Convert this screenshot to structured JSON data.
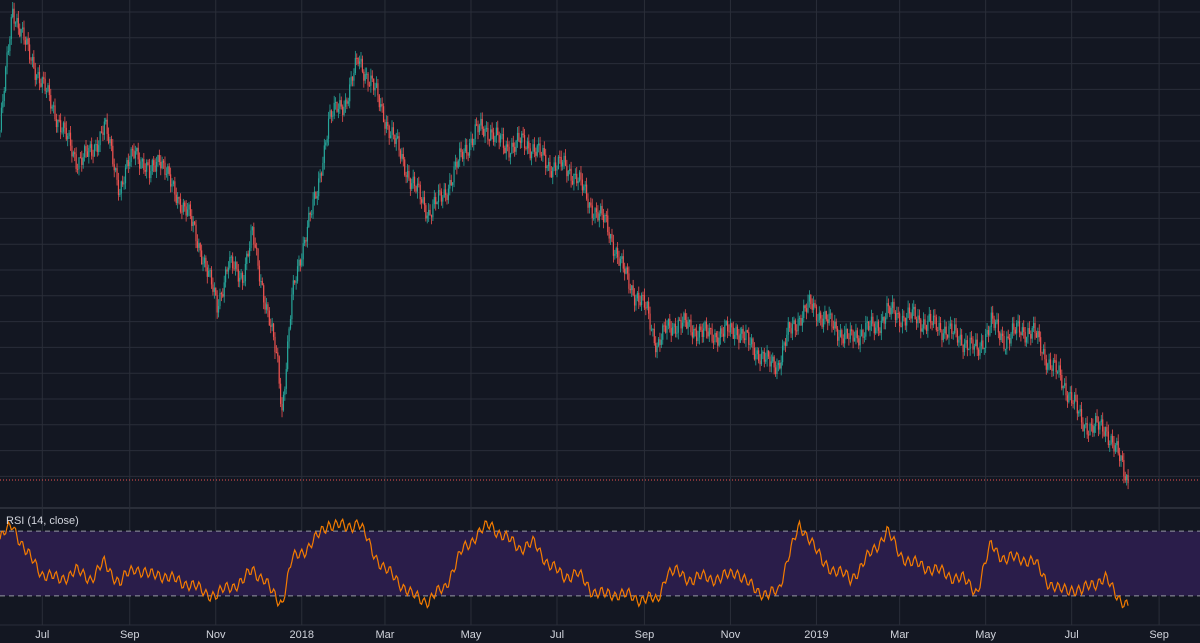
{
  "colors": {
    "background": "#131722",
    "grid": "#2a2e39",
    "up": "#26a69a",
    "down": "#ef5350",
    "rsi_line": "#f57c00",
    "rsi_band": "#2a1d4a",
    "rsi_bounds": "#9598a1",
    "text": "#d1d4dc",
    "last_price_line": "#ef5350"
  },
  "rsi": {
    "label": "RSI (14, close)",
    "upper": 70,
    "lower": 30
  },
  "chart_data": [
    {
      "type": "candlestick",
      "title": "",
      "grid": true,
      "x_ticks": [
        "Jul",
        "Sep",
        "Nov",
        "2018",
        "Mar",
        "May",
        "Jul",
        "Sep",
        "Nov",
        "2019",
        "Mar",
        "May",
        "Jul",
        "Sep"
      ],
      "x_range": [
        "2017-06-01",
        "2019-09-30"
      ],
      "price_path": [
        [
          "2017-06-01",
          78
        ],
        [
          "2017-06-10",
          99
        ],
        [
          "2017-06-20",
          92
        ],
        [
          "2017-07-01",
          86
        ],
        [
          "2017-07-12",
          80
        ],
        [
          "2017-07-25",
          73
        ],
        [
          "2017-08-05",
          74
        ],
        [
          "2017-08-14",
          79
        ],
        [
          "2017-08-25",
          68
        ],
        [
          "2017-09-05",
          75
        ],
        [
          "2017-09-15",
          70
        ],
        [
          "2017-09-22",
          74
        ],
        [
          "2017-10-01",
          68
        ],
        [
          "2017-10-12",
          64
        ],
        [
          "2017-10-22",
          57
        ],
        [
          "2017-11-02",
          48
        ],
        [
          "2017-11-10",
          55
        ],
        [
          "2017-11-20",
          53
        ],
        [
          "2017-11-27",
          60
        ],
        [
          "2017-12-05",
          50
        ],
        [
          "2017-12-10",
          44
        ],
        [
          "2017-12-15",
          38
        ],
        [
          "2017-12-18",
          30
        ],
        [
          "2017-12-25",
          49
        ],
        [
          "2018-01-05",
          62
        ],
        [
          "2018-01-12",
          67
        ],
        [
          "2018-01-20",
          80
        ],
        [
          "2018-02-01",
          83
        ],
        [
          "2018-02-10",
          90
        ],
        [
          "2018-02-20",
          86
        ],
        [
          "2018-03-01",
          80
        ],
        [
          "2018-03-10",
          75
        ],
        [
          "2018-03-20",
          69
        ],
        [
          "2018-04-01",
          64
        ],
        [
          "2018-04-12",
          67
        ],
        [
          "2018-04-25",
          74
        ],
        [
          "2018-05-05",
          78
        ],
        [
          "2018-05-15",
          78
        ],
        [
          "2018-05-25",
          75
        ],
        [
          "2018-06-05",
          76
        ],
        [
          "2018-06-15",
          75
        ],
        [
          "2018-06-25",
          72
        ],
        [
          "2018-07-05",
          72
        ],
        [
          "2018-07-15",
          70
        ],
        [
          "2018-07-25",
          65
        ],
        [
          "2018-08-05",
          62
        ],
        [
          "2018-08-15",
          55
        ],
        [
          "2018-08-25",
          50
        ],
        [
          "2018-09-03",
          47
        ],
        [
          "2018-09-10",
          41
        ],
        [
          "2018-09-17",
          44
        ],
        [
          "2018-09-25",
          45
        ],
        [
          "2018-10-05",
          44
        ],
        [
          "2018-10-15",
          43
        ],
        [
          "2018-10-25",
          43
        ],
        [
          "2018-11-05",
          44
        ],
        [
          "2018-11-12",
          42
        ],
        [
          "2018-11-20",
          40
        ],
        [
          "2018-11-28",
          38
        ],
        [
          "2018-12-05",
          38
        ],
        [
          "2018-12-12",
          43
        ],
        [
          "2018-12-20",
          46
        ],
        [
          "2018-12-28",
          48
        ],
        [
          "2019-01-05",
          46
        ],
        [
          "2019-01-15",
          44
        ],
        [
          "2019-01-25",
          42
        ],
        [
          "2019-02-05",
          44
        ],
        [
          "2019-02-12",
          44
        ],
        [
          "2019-02-20",
          47
        ],
        [
          "2019-03-01",
          46
        ],
        [
          "2019-03-10",
          46
        ],
        [
          "2019-03-20",
          45
        ],
        [
          "2019-04-01",
          44
        ],
        [
          "2019-04-15",
          42
        ],
        [
          "2019-04-25",
          40
        ],
        [
          "2019-05-05",
          45
        ],
        [
          "2019-05-15",
          42
        ],
        [
          "2019-05-25",
          44
        ],
        [
          "2019-06-05",
          43
        ],
        [
          "2019-06-15",
          38
        ],
        [
          "2019-06-22",
          36
        ],
        [
          "2019-07-01",
          32
        ],
        [
          "2019-07-08",
          28
        ],
        [
          "2019-07-15",
          27
        ],
        [
          "2019-07-25",
          27
        ],
        [
          "2019-08-05",
          21
        ],
        [
          "2019-08-10",
          18
        ]
      ],
      "last_price": 18
    },
    {
      "type": "line",
      "title": "RSI (14, close)",
      "series": [
        {
          "name": "RSI (14, close)"
        }
      ],
      "ylim": [
        20,
        80
      ],
      "bands": {
        "upper": 70,
        "lower": 30
      },
      "points": [
        [
          "2017-06-01",
          65
        ],
        [
          "2017-06-10",
          74
        ],
        [
          "2017-06-20",
          56
        ],
        [
          "2017-07-01",
          44
        ],
        [
          "2017-07-12",
          40
        ],
        [
          "2017-07-25",
          45
        ],
        [
          "2017-08-05",
          41
        ],
        [
          "2017-08-14",
          50
        ],
        [
          "2017-08-25",
          38
        ],
        [
          "2017-09-05",
          48
        ],
        [
          "2017-09-15",
          42
        ],
        [
          "2017-09-22",
          44
        ],
        [
          "2017-10-01",
          40
        ],
        [
          "2017-10-12",
          38
        ],
        [
          "2017-10-22",
          33
        ],
        [
          "2017-11-02",
          30
        ],
        [
          "2017-11-10",
          36
        ],
        [
          "2017-11-20",
          38
        ],
        [
          "2017-11-27",
          47
        ],
        [
          "2017-12-05",
          40
        ],
        [
          "2017-12-10",
          33
        ],
        [
          "2017-12-15",
          28
        ],
        [
          "2017-12-18",
          26
        ],
        [
          "2017-12-25",
          52
        ],
        [
          "2018-01-05",
          60
        ],
        [
          "2018-01-12",
          66
        ],
        [
          "2018-01-20",
          75
        ],
        [
          "2018-02-01",
          72
        ],
        [
          "2018-02-10",
          76
        ],
        [
          "2018-02-20",
          58
        ],
        [
          "2018-03-01",
          46
        ],
        [
          "2018-03-10",
          40
        ],
        [
          "2018-03-20",
          30
        ],
        [
          "2018-04-01",
          27
        ],
        [
          "2018-04-12",
          35
        ],
        [
          "2018-04-25",
          58
        ],
        [
          "2018-05-05",
          68
        ],
        [
          "2018-05-15",
          74
        ],
        [
          "2018-05-25",
          66
        ],
        [
          "2018-06-05",
          60
        ],
        [
          "2018-06-15",
          62
        ],
        [
          "2018-06-25",
          50
        ],
        [
          "2018-07-05",
          42
        ],
        [
          "2018-07-15",
          44
        ],
        [
          "2018-07-25",
          34
        ],
        [
          "2018-08-05",
          30
        ],
        [
          "2018-08-15",
          32
        ],
        [
          "2018-08-25",
          28
        ],
        [
          "2018-09-03",
          29
        ],
        [
          "2018-09-10",
          26
        ],
        [
          "2018-09-17",
          45
        ],
        [
          "2018-09-25",
          44
        ],
        [
          "2018-10-05",
          40
        ],
        [
          "2018-10-15",
          42
        ],
        [
          "2018-10-25",
          40
        ],
        [
          "2018-11-05",
          46
        ],
        [
          "2018-11-12",
          38
        ],
        [
          "2018-11-20",
          34
        ],
        [
          "2018-11-28",
          30
        ],
        [
          "2018-12-05",
          33
        ],
        [
          "2018-12-12",
          55
        ],
        [
          "2018-12-20",
          72
        ],
        [
          "2018-12-28",
          66
        ],
        [
          "2019-01-05",
          50
        ],
        [
          "2019-01-15",
          46
        ],
        [
          "2019-01-25",
          40
        ],
        [
          "2019-02-05",
          52
        ],
        [
          "2019-02-12",
          60
        ],
        [
          "2019-02-20",
          70
        ],
        [
          "2019-03-01",
          56
        ],
        [
          "2019-03-10",
          50
        ],
        [
          "2019-03-20",
          48
        ],
        [
          "2019-04-01",
          44
        ],
        [
          "2019-04-15",
          40
        ],
        [
          "2019-04-25",
          33
        ],
        [
          "2019-05-05",
          62
        ],
        [
          "2019-05-15",
          52
        ],
        [
          "2019-05-25",
          54
        ],
        [
          "2019-06-05",
          50
        ],
        [
          "2019-06-15",
          38
        ],
        [
          "2019-06-22",
          33
        ],
        [
          "2019-07-01",
          35
        ],
        [
          "2019-07-08",
          32
        ],
        [
          "2019-07-15",
          38
        ],
        [
          "2019-07-25",
          40
        ],
        [
          "2019-08-05",
          28
        ],
        [
          "2019-08-10",
          23
        ]
      ]
    }
  ]
}
